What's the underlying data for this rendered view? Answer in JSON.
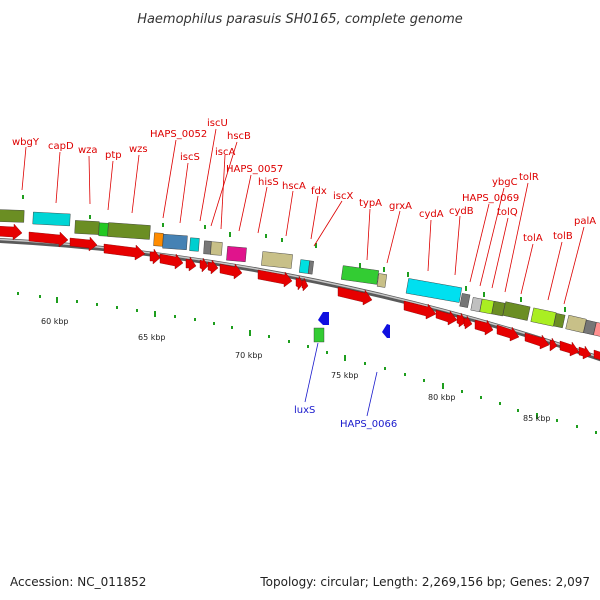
{
  "title": "Haemophilus parasuis SH0165, complete genome",
  "footer": {
    "accession": "Accession: NC_011852",
    "summary": "Topology: circular; Length: 2,269,156 bp; Genes: 2,097"
  },
  "colors": {
    "label_red": "#dd0000",
    "label_blue": "#1a1acc",
    "arrow_red": "#e60000",
    "arrow_blue": "#1010e0",
    "backbone": "#8c8c8c",
    "tick": "#1e9e1e"
  },
  "scale_labels": [
    "60 kbp",
    "65 kbp",
    "70 kbp",
    "75 kbp",
    "80 kbp",
    "85 kbp"
  ],
  "forward_labels": [
    "wbgY",
    "capD",
    "wza",
    "ptp",
    "wzs",
    "HAPS_0052",
    "iscU",
    "iscS",
    "hscB",
    "iscA",
    "HAPS_0057",
    "hisS",
    "hscA",
    "fdx",
    "iscX",
    "typA",
    "grxA",
    "cydA",
    "cydB",
    "HAPS_0069",
    "ybgC",
    "tolQ",
    "tolR",
    "tolA",
    "tolB",
    "palA"
  ],
  "reverse_labels": [
    "luxS",
    "HAPS_0066"
  ]
}
